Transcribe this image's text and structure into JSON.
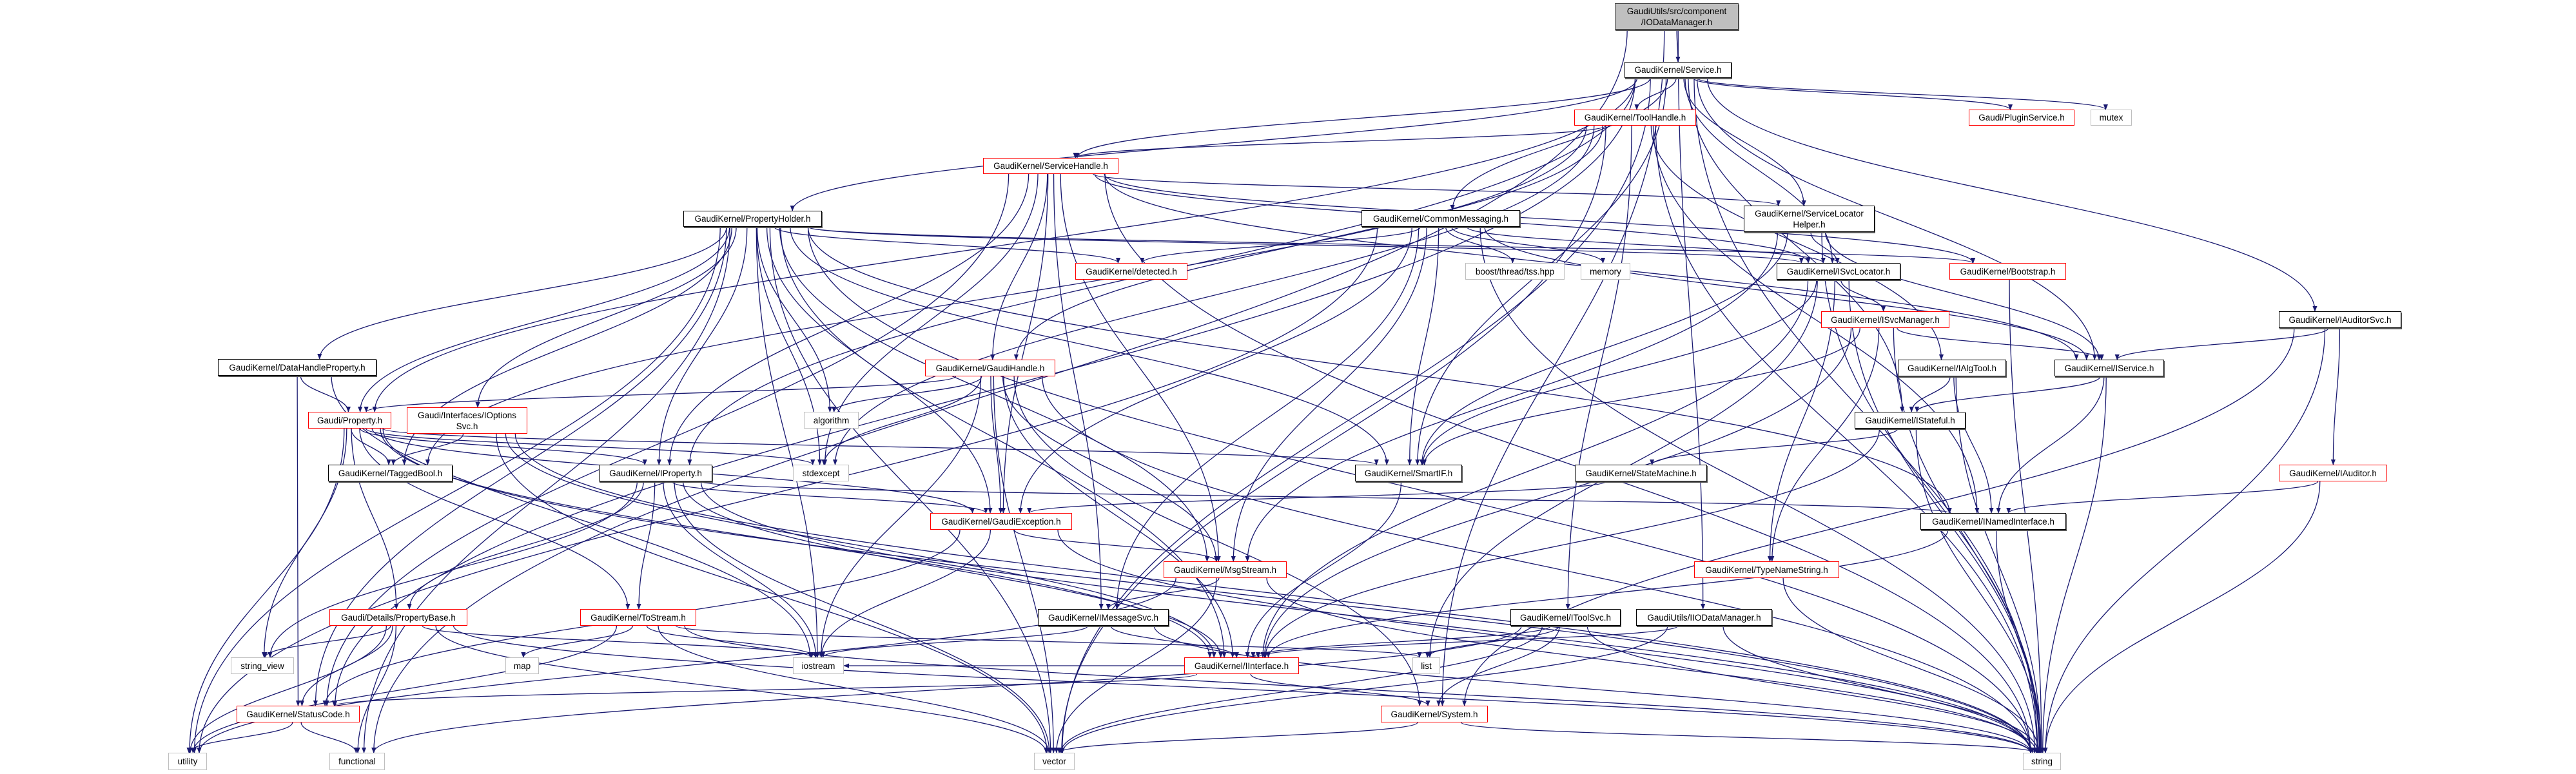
{
  "colors": {
    "edge": "#191970",
    "undocumented_border": "#ff0000",
    "external_border": "#bfbfbf",
    "current_fill": "#bfbfbf"
  },
  "nodes": [
    {
      "id": "iodm",
      "label": "GaudiUtils/src/component\n/IODataManager.h",
      "kind": "current"
    },
    {
      "id": "service",
      "label": "GaudiKernel/Service.h",
      "kind": "documented"
    },
    {
      "id": "toolhandle",
      "label": "GaudiKernel/ToolHandle.h",
      "kind": "undocumented"
    },
    {
      "id": "servicehandle",
      "label": "GaudiKernel/ServiceHandle.h",
      "kind": "undocumented"
    },
    {
      "id": "commonmsg",
      "label": "GaudiKernel/CommonMessaging.h",
      "kind": "documented"
    },
    {
      "id": "propholder",
      "label": "GaudiKernel/PropertyHolder.h",
      "kind": "documented"
    },
    {
      "id": "slhelper",
      "label": "GaudiKernel/ServiceLocator\nHelper.h",
      "kind": "documented"
    },
    {
      "id": "detected",
      "label": "GaudiKernel/detected.h",
      "kind": "undocumented"
    },
    {
      "id": "tss",
      "label": "boost/thread/tss.hpp",
      "kind": "external"
    },
    {
      "id": "memory",
      "label": "memory",
      "kind": "external"
    },
    {
      "id": "isvclocator",
      "label": "GaudiKernel/ISvcLocator.h",
      "kind": "documented"
    },
    {
      "id": "bootstrap",
      "label": "GaudiKernel/Bootstrap.h",
      "kind": "undocumented"
    },
    {
      "id": "plugin",
      "label": "Gaudi/PluginService.h",
      "kind": "undocumented"
    },
    {
      "id": "mutex",
      "label": "mutex",
      "kind": "external"
    },
    {
      "id": "isvcmanager",
      "label": "GaudiKernel/ISvcManager.h",
      "kind": "undocumented"
    },
    {
      "id": "iauditorsvc",
      "label": "GaudiKernel/IAuditorSvc.h",
      "kind": "documented"
    },
    {
      "id": "datahandleprop",
      "label": "GaudiKernel/DataHandleProperty.h",
      "kind": "documented"
    },
    {
      "id": "gaudihandle",
      "label": "GaudiKernel/GaudiHandle.h",
      "kind": "undocumented"
    },
    {
      "id": "ialgtool",
      "label": "GaudiKernel/IAlgTool.h",
      "kind": "documented"
    },
    {
      "id": "iservice",
      "label": "GaudiKernel/IService.h",
      "kind": "documented"
    },
    {
      "id": "property",
      "label": "Gaudi/Property.h",
      "kind": "undocumented"
    },
    {
      "id": "ioptionssvc",
      "label": "Gaudi/Interfaces/IOptions\nSvc.h",
      "kind": "undocumented"
    },
    {
      "id": "algorithm",
      "label": "algorithm",
      "kind": "external"
    },
    {
      "id": "istateful",
      "label": "GaudiKernel/IStateful.h",
      "kind": "documented"
    },
    {
      "id": "taggedbool",
      "label": "GaudiKernel/TaggedBool.h",
      "kind": "documented"
    },
    {
      "id": "iproperty",
      "label": "GaudiKernel/IProperty.h",
      "kind": "documented"
    },
    {
      "id": "stdexcept",
      "label": "stdexcept",
      "kind": "external"
    },
    {
      "id": "smartif",
      "label": "GaudiKernel/SmartIF.h",
      "kind": "documented"
    },
    {
      "id": "statemachine",
      "label": "GaudiKernel/StateMachine.h",
      "kind": "documented"
    },
    {
      "id": "iauditor",
      "label": "GaudiKernel/IAuditor.h",
      "kind": "undocumented"
    },
    {
      "id": "gaudiexception",
      "label": "GaudiKernel/GaudiException.h",
      "kind": "undocumented"
    },
    {
      "id": "inamed",
      "label": "GaudiKernel/INamedInterface.h",
      "kind": "documented"
    },
    {
      "id": "msgstream",
      "label": "GaudiKernel/MsgStream.h",
      "kind": "undocumented"
    },
    {
      "id": "typename",
      "label": "GaudiKernel/TypeNameString.h",
      "kind": "undocumented"
    },
    {
      "id": "propertybase",
      "label": "Gaudi/Details/PropertyBase.h",
      "kind": "undocumented"
    },
    {
      "id": "tostream",
      "label": "GaudiKernel/ToStream.h",
      "kind": "undocumented"
    },
    {
      "id": "imessagesvc",
      "label": "GaudiKernel/IMessageSvc.h",
      "kind": "documented"
    },
    {
      "id": "itoolsvc",
      "label": "GaudiKernel/IToolSvc.h",
      "kind": "documented"
    },
    {
      "id": "iiodm",
      "label": "GaudiUtils/IIODataManager.h",
      "kind": "documented"
    },
    {
      "id": "string_view",
      "label": "string_view",
      "kind": "external"
    },
    {
      "id": "map",
      "label": "map",
      "kind": "external"
    },
    {
      "id": "iostream",
      "label": "iostream",
      "kind": "external"
    },
    {
      "id": "iinterface",
      "label": "GaudiKernel/IInterface.h",
      "kind": "undocumented"
    },
    {
      "id": "list",
      "label": "list",
      "kind": "external"
    },
    {
      "id": "statuscode",
      "label": "GaudiKernel/StatusCode.h",
      "kind": "undocumented"
    },
    {
      "id": "system",
      "label": "GaudiKernel/System.h",
      "kind": "undocumented"
    },
    {
      "id": "utility",
      "label": "utility",
      "kind": "external"
    },
    {
      "id": "functional",
      "label": "functional",
      "kind": "external"
    },
    {
      "id": "vector",
      "label": "vector",
      "kind": "external"
    },
    {
      "id": "string",
      "label": "string",
      "kind": "external"
    }
  ],
  "edges": [
    [
      "iodm",
      "service"
    ],
    [
      "iodm",
      "iiodm"
    ],
    [
      "iodm",
      "system"
    ],
    [
      "iodm",
      "functional"
    ],
    [
      "service",
      "toolhandle"
    ],
    [
      "service",
      "servicehandle"
    ],
    [
      "service",
      "commonmsg"
    ],
    [
      "service",
      "propholder"
    ],
    [
      "service",
      "slhelper"
    ],
    [
      "service",
      "isvclocator"
    ],
    [
      "service",
      "iservice"
    ],
    [
      "service",
      "iauditorsvc"
    ],
    [
      "service",
      "plugin"
    ],
    [
      "service",
      "mutex"
    ],
    [
      "service",
      "istateful"
    ],
    [
      "service",
      "smartif"
    ],
    [
      "service",
      "property"
    ],
    [
      "service",
      "iproperty"
    ],
    [
      "service",
      "statuscode"
    ],
    [
      "service",
      "string"
    ],
    [
      "service",
      "vector"
    ],
    [
      "toolhandle",
      "servicehandle"
    ],
    [
      "toolhandle",
      "gaudihandle"
    ],
    [
      "toolhandle",
      "ialgtool"
    ],
    [
      "toolhandle",
      "inamed"
    ],
    [
      "toolhandle",
      "itoolsvc"
    ],
    [
      "toolhandle",
      "stdexcept"
    ],
    [
      "toolhandle",
      "string"
    ],
    [
      "toolhandle",
      "vector"
    ],
    [
      "toolhandle",
      "taggedbool"
    ],
    [
      "servicehandle",
      "gaudihandle"
    ],
    [
      "servicehandle",
      "imessagesvc"
    ],
    [
      "servicehandle",
      "isvclocator"
    ],
    [
      "servicehandle",
      "slhelper"
    ],
    [
      "servicehandle",
      "bootstrap"
    ],
    [
      "servicehandle",
      "msgstream"
    ],
    [
      "servicehandle",
      "gaudiexception"
    ],
    [
      "servicehandle",
      "iproperty"
    ],
    [
      "servicehandle",
      "stdexcept"
    ],
    [
      "servicehandle",
      "string"
    ],
    [
      "servicehandle",
      "statuscode"
    ],
    [
      "servicehandle",
      "iservice"
    ],
    [
      "commonmsg",
      "detected"
    ],
    [
      "commonmsg",
      "tss"
    ],
    [
      "commonmsg",
      "memory"
    ],
    [
      "commonmsg",
      "isvclocator"
    ],
    [
      "commonmsg",
      "iservice"
    ],
    [
      "commonmsg",
      "imessagesvc"
    ],
    [
      "commonmsg",
      "msgstream"
    ],
    [
      "commonmsg",
      "smartif"
    ],
    [
      "commonmsg",
      "gaudiexception"
    ],
    [
      "commonmsg",
      "utility"
    ],
    [
      "commonmsg",
      "string"
    ],
    [
      "propholder",
      "datahandleprop"
    ],
    [
      "propholder",
      "property"
    ],
    [
      "propholder",
      "ioptionssvc"
    ],
    [
      "propholder",
      "iproperty"
    ],
    [
      "propholder",
      "isvclocator"
    ],
    [
      "propholder",
      "bootstrap"
    ],
    [
      "propholder",
      "detected"
    ],
    [
      "propholder",
      "gaudiexception"
    ],
    [
      "propholder",
      "taggedbool"
    ],
    [
      "propholder",
      "msgstream"
    ],
    [
      "propholder",
      "algorithm"
    ],
    [
      "propholder",
      "stdexcept"
    ],
    [
      "propholder",
      "iostream"
    ],
    [
      "propholder",
      "utility"
    ],
    [
      "propholder",
      "functional"
    ],
    [
      "propholder",
      "string"
    ],
    [
      "propholder",
      "vector"
    ],
    [
      "propholder",
      "iinterface"
    ],
    [
      "propholder",
      "smartif"
    ],
    [
      "propholder",
      "statuscode"
    ],
    [
      "propholder",
      "inamed"
    ],
    [
      "slhelper",
      "isvclocator"
    ],
    [
      "slhelper",
      "iservice"
    ],
    [
      "slhelper",
      "smartif"
    ],
    [
      "slhelper",
      "msgstream"
    ],
    [
      "slhelper",
      "string"
    ],
    [
      "isvclocator",
      "iinterface"
    ],
    [
      "isvclocator",
      "isvcmanager"
    ],
    [
      "isvclocator",
      "typename"
    ],
    [
      "isvclocator",
      "smartif"
    ],
    [
      "isvclocator",
      "list"
    ],
    [
      "isvclocator",
      "string"
    ],
    [
      "isvcmanager",
      "iservice"
    ],
    [
      "isvcmanager",
      "smartif"
    ],
    [
      "isvcmanager",
      "typename"
    ],
    [
      "isvcmanager",
      "string"
    ],
    [
      "isvcmanager",
      "iinterface"
    ],
    [
      "bootstrap",
      "string"
    ],
    [
      "iauditorsvc",
      "iservice"
    ],
    [
      "iauditorsvc",
      "iauditor"
    ],
    [
      "iauditorsvc",
      "string"
    ],
    [
      "iauditorsvc",
      "system"
    ],
    [
      "iauditor",
      "inamed"
    ],
    [
      "iauditor",
      "string"
    ],
    [
      "ialgtool",
      "istateful"
    ],
    [
      "ialgtool",
      "inamed"
    ],
    [
      "ialgtool",
      "string"
    ],
    [
      "iservice",
      "istateful"
    ],
    [
      "iservice",
      "inamed"
    ],
    [
      "iservice",
      "string"
    ],
    [
      "istateful",
      "statemachine"
    ],
    [
      "istateful",
      "iinterface"
    ],
    [
      "istateful",
      "string"
    ],
    [
      "statemachine",
      "gaudiexception"
    ],
    [
      "inamed",
      "iinterface"
    ],
    [
      "inamed",
      "string"
    ],
    [
      "typename",
      "string"
    ],
    [
      "itoolsvc",
      "iinterface"
    ],
    [
      "itoolsvc",
      "system"
    ],
    [
      "itoolsvc",
      "list"
    ],
    [
      "itoolsvc",
      "string"
    ],
    [
      "itoolsvc",
      "functional"
    ],
    [
      "itoolsvc",
      "vector"
    ],
    [
      "iiodm",
      "iinterface"
    ],
    [
      "iiodm",
      "string"
    ],
    [
      "iiodm",
      "vector"
    ],
    [
      "smartif",
      "iinterface"
    ],
    [
      "gaudiexception",
      "statuscode"
    ],
    [
      "gaudiexception",
      "msgstream"
    ],
    [
      "gaudiexception",
      "iostream"
    ],
    [
      "gaudiexception",
      "string"
    ],
    [
      "msgstream",
      "imessagesvc"
    ],
    [
      "msgstream",
      "vector"
    ],
    [
      "msgstream",
      "string"
    ],
    [
      "msgstream",
      "utility"
    ],
    [
      "imessagesvc",
      "iinterface"
    ],
    [
      "imessagesvc",
      "iostream"
    ],
    [
      "imessagesvc",
      "string"
    ],
    [
      "iinterface",
      "statuscode"
    ],
    [
      "iinterface",
      "system"
    ],
    [
      "iinterface",
      "iostream"
    ],
    [
      "system",
      "string"
    ],
    [
      "system",
      "vector"
    ],
    [
      "statuscode",
      "utility"
    ],
    [
      "statuscode",
      "functional"
    ],
    [
      "iproperty",
      "iinterface"
    ],
    [
      "iproperty",
      "propertybase"
    ],
    [
      "iproperty",
      "tostream"
    ],
    [
      "iproperty",
      "string_view"
    ],
    [
      "iproperty",
      "string"
    ],
    [
      "iproperty",
      "vector"
    ],
    [
      "iproperty",
      "iostream"
    ],
    [
      "iproperty",
      "gaudiexception"
    ],
    [
      "iproperty",
      "inamed"
    ],
    [
      "property",
      "propertybase"
    ],
    [
      "property",
      "taggedbool"
    ],
    [
      "property",
      "iproperty"
    ],
    [
      "property",
      "tostream"
    ],
    [
      "property",
      "gaudiexception"
    ],
    [
      "property",
      "stdexcept"
    ],
    [
      "property",
      "string"
    ],
    [
      "property",
      "utility"
    ],
    [
      "property",
      "string_view"
    ],
    [
      "property",
      "iinterface"
    ],
    [
      "property",
      "smartif"
    ],
    [
      "ioptionssvc",
      "taggedbool"
    ],
    [
      "ioptionssvc",
      "iinterface"
    ],
    [
      "ioptionssvc",
      "string"
    ],
    [
      "ioptionssvc",
      "vector"
    ],
    [
      "propertybase",
      "statuscode"
    ],
    [
      "propertybase",
      "string_view"
    ],
    [
      "propertybase",
      "iostream"
    ],
    [
      "propertybase",
      "utility"
    ],
    [
      "propertybase",
      "functional"
    ],
    [
      "propertybase",
      "string"
    ],
    [
      "propertybase",
      "vector"
    ],
    [
      "tostream",
      "map"
    ],
    [
      "tostream",
      "iostream"
    ],
    [
      "tostream",
      "string"
    ],
    [
      "tostream",
      "vector"
    ],
    [
      "tostream",
      "list"
    ],
    [
      "tostream",
      "utility"
    ],
    [
      "datahandleprop",
      "property"
    ],
    [
      "datahandleprop",
      "statuscode"
    ],
    [
      "datahandleprop",
      "iostream"
    ],
    [
      "gaudihandle",
      "gaudiexception"
    ],
    [
      "gaudihandle",
      "iinterface"
    ],
    [
      "gaudihandle",
      "system"
    ],
    [
      "gaudihandle",
      "property"
    ],
    [
      "gaudihandle",
      "algorithm"
    ],
    [
      "gaudihandle",
      "iostream"
    ],
    [
      "gaudihandle",
      "stdexcept"
    ],
    [
      "gaudihandle",
      "string"
    ],
    [
      "gaudihandle",
      "vector"
    ],
    [
      "gaudihandle",
      "msgstream"
    ]
  ]
}
